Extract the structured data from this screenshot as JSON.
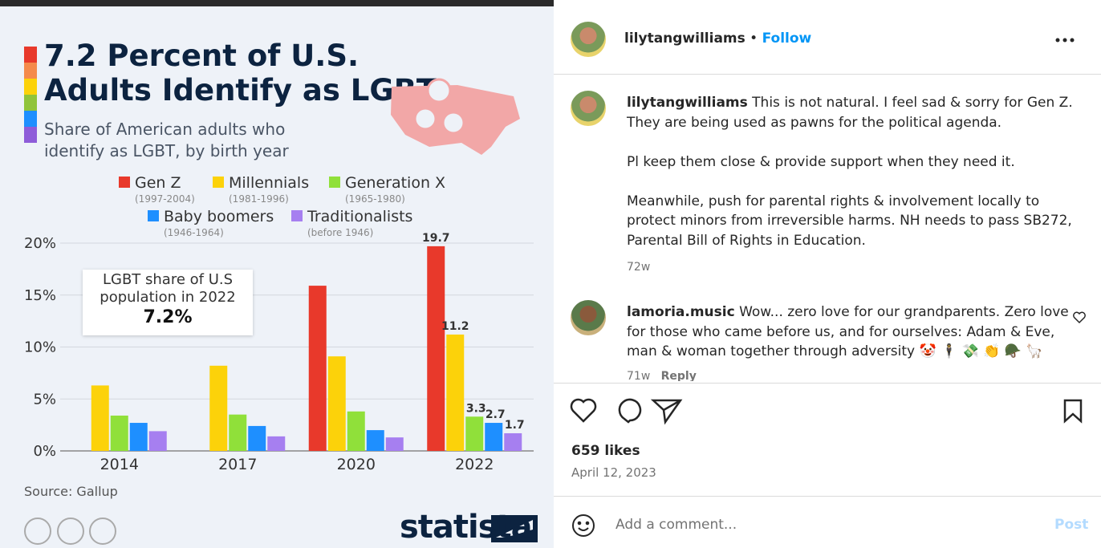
{
  "chart_data": {
    "type": "bar",
    "title": "7.2 Percent of U.S. Adults Identify as LGBT",
    "subtitle": "Share of American adults who identify as LGBT, by birth year",
    "categories": [
      "2014",
      "2017",
      "2020",
      "2022"
    ],
    "series": [
      {
        "name": "Gen Z",
        "years": "(1997-2004)",
        "color": "#e8392b",
        "values": [
          null,
          null,
          15.9,
          19.7
        ]
      },
      {
        "name": "Millennials",
        "years": "(1981-1996)",
        "color": "#fcd20a",
        "values": [
          6.3,
          8.2,
          9.1,
          11.2
        ]
      },
      {
        "name": "Generation X",
        "years": "(1965-1980)",
        "color": "#90e03a",
        "values": [
          3.4,
          3.5,
          3.8,
          3.3
        ]
      },
      {
        "name": "Baby boomers",
        "years": "(1946-1964)",
        "color": "#1e8fff",
        "values": [
          2.7,
          2.4,
          2.0,
          2.7
        ]
      },
      {
        "name": "Traditionalists",
        "years": "(before 1946)",
        "color": "#a67ff0",
        "values": [
          1.9,
          1.4,
          1.3,
          1.7
        ]
      }
    ],
    "ylim": [
      0,
      20
    ],
    "yticks": [
      {
        "value": 0,
        "label": "0%"
      },
      {
        "value": 5,
        "label": "5%"
      },
      {
        "value": 10,
        "label": "10%"
      },
      {
        "value": 15,
        "label": "15%"
      },
      {
        "value": 20,
        "label": "20%"
      }
    ],
    "grid": true,
    "annotation": {
      "text": "LGBT share of U.S population in 2022",
      "value": "7.2%"
    },
    "source": "Source: Gallup",
    "brand": "statista"
  },
  "post": {
    "author": "lilytangwilliams",
    "follow": "Follow",
    "comments": [
      {
        "user": "lilytangwilliams",
        "paragraphs": [
          "This is not natural. I feel sad & sorry for Gen Z. They are being used as pawns for the political agenda.",
          "Pl keep them close & provide support when they need it.",
          "Meanwhile, push for parental rights & involvement locally to protect minors from irreversible harms. NH needs to pass SB272, Parental Bill of Rights in Education."
        ],
        "age": "72w"
      },
      {
        "user": "lamoria.music",
        "text": "Wow... zero love for our grandparents. Zero love for those who came before us, and for ourselves: Adam & Eve, man & woman together through adversity 🤡 🕴 💸 👏 🪖 🦙",
        "age": "71w",
        "reply": "Reply"
      }
    ],
    "likes": "659 likes",
    "date": "April 12, 2023",
    "comment_placeholder": "Add a comment...",
    "post_button": "Post"
  }
}
